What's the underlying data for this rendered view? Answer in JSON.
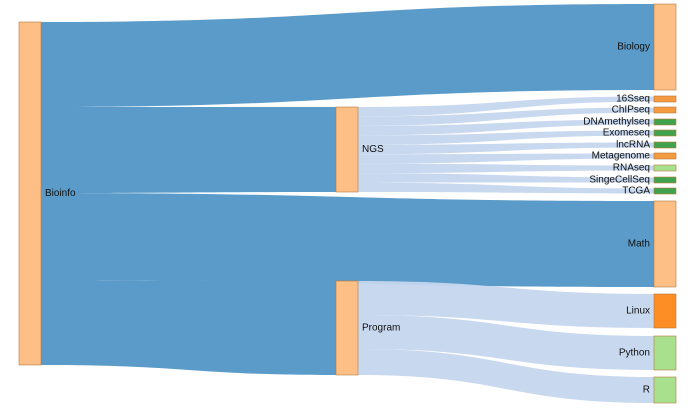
{
  "diagram": {
    "type": "sankey",
    "nodes": [
      {
        "id": "bioinfo",
        "label": "Bioinfo",
        "color": "#fdbf85"
      },
      {
        "id": "ngs",
        "label": "NGS",
        "color": "#fdbf85"
      },
      {
        "id": "program",
        "label": "Program",
        "color": "#fdbf85"
      },
      {
        "id": "biology",
        "label": "Biology",
        "color": "#fdbf85"
      },
      {
        "id": "16sseq",
        "label": "16Sseq",
        "color": "#f49a3f"
      },
      {
        "id": "chipseq",
        "label": "ChIPseq",
        "color": "#f49a3f"
      },
      {
        "id": "dnamethylseq",
        "label": "DNAmethylseq",
        "color": "#3fa34d"
      },
      {
        "id": "exomeseq",
        "label": "Exomeseq",
        "color": "#3fa34d"
      },
      {
        "id": "lncrna",
        "label": "lncRNA",
        "color": "#3fa34d"
      },
      {
        "id": "metagenome",
        "label": "Metagenome",
        "color": "#f49a3f"
      },
      {
        "id": "rnaseq",
        "label": "RNAseq",
        "color": "#a8e08e"
      },
      {
        "id": "singecellseq",
        "label": "SingeCellSeq",
        "color": "#3fa34d"
      },
      {
        "id": "tcga",
        "label": "TCGA",
        "color": "#3fa34d"
      },
      {
        "id": "math",
        "label": "Math",
        "color": "#fdbf85"
      },
      {
        "id": "linux",
        "label": "Linux",
        "color": "#fd8d25"
      },
      {
        "id": "python",
        "label": "Python",
        "color": "#a8e08e"
      },
      {
        "id": "r",
        "label": "R",
        "color": "#a8e08e"
      }
    ],
    "links": [
      {
        "source": "bioinfo",
        "target": "biology",
        "value": 10
      },
      {
        "source": "bioinfo",
        "target": "ngs",
        "value": 10
      },
      {
        "source": "bioinfo",
        "target": "math",
        "value": 10
      },
      {
        "source": "bioinfo",
        "target": "program",
        "value": 10
      },
      {
        "source": "ngs",
        "target": "16sseq",
        "value": 1
      },
      {
        "source": "ngs",
        "target": "chipseq",
        "value": 1
      },
      {
        "source": "ngs",
        "target": "dnamethylseq",
        "value": 1
      },
      {
        "source": "ngs",
        "target": "exomeseq",
        "value": 1
      },
      {
        "source": "ngs",
        "target": "lncrna",
        "value": 1
      },
      {
        "source": "ngs",
        "target": "metagenome",
        "value": 1
      },
      {
        "source": "ngs",
        "target": "rnaseq",
        "value": 1
      },
      {
        "source": "ngs",
        "target": "singecellseq",
        "value": 1
      },
      {
        "source": "ngs",
        "target": "tcga",
        "value": 1
      },
      {
        "source": "program",
        "target": "linux",
        "value": 4
      },
      {
        "source": "program",
        "target": "python",
        "value": 4
      },
      {
        "source": "program",
        "target": "r",
        "value": 3
      }
    ],
    "colors": {
      "bioinfo_links": "#5b9bc9",
      "secondary_links": "#c5d6ee"
    }
  }
}
